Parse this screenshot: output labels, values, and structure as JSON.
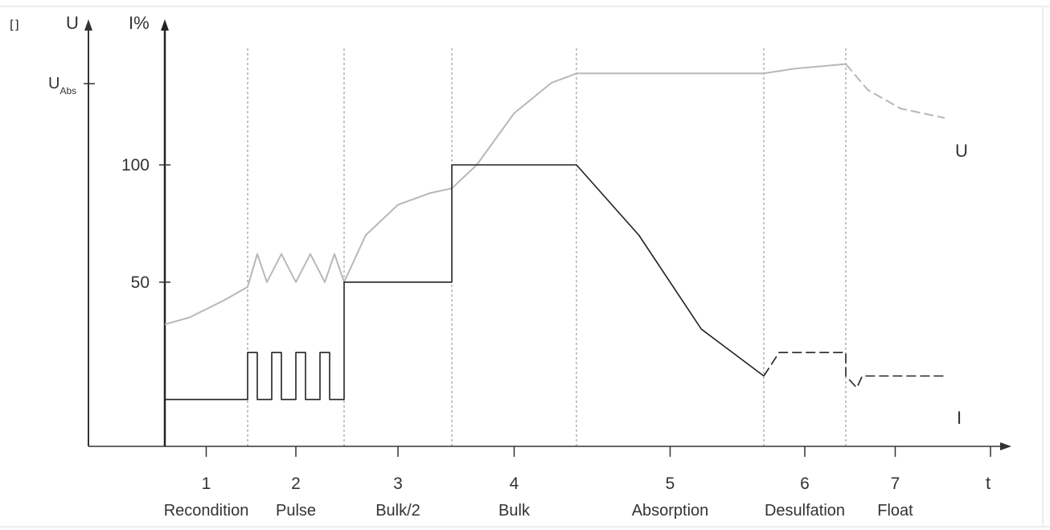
{
  "chart_data": {
    "type": "line",
    "title": "",
    "axes": {
      "u_axis_label": "U",
      "i_axis_label": "I%",
      "x_axis_label": "t",
      "u_abs_label": "U",
      "u_abs_subscript": "Abs",
      "y_ticks": [
        {
          "label": "100",
          "value": 100
        },
        {
          "label": "50",
          "value": 50
        }
      ],
      "ylim": [
        -20,
        160
      ]
    },
    "phases": [
      {
        "number": "1",
        "name": "Recondition"
      },
      {
        "number": "2",
        "name": "Pulse"
      },
      {
        "number": "3",
        "name": "Bulk/2"
      },
      {
        "number": "4",
        "name": "Bulk"
      },
      {
        "number": "5",
        "name": "Absorption"
      },
      {
        "number": "6",
        "name": "Desulfation"
      },
      {
        "number": "7",
        "name": "Float"
      }
    ],
    "phase_boundaries": [
      0,
      1,
      2,
      3,
      4,
      5.5,
      6.3,
      7.2
    ],
    "series": [
      {
        "name": "U",
        "color": "#b8b8b8",
        "points": [
          [
            0,
            32
          ],
          [
            0.3,
            35
          ],
          [
            0.7,
            42
          ],
          [
            1,
            48
          ],
          [
            1.1,
            62
          ],
          [
            1.2,
            50
          ],
          [
            1.35,
            62
          ],
          [
            1.5,
            50
          ],
          [
            1.65,
            62
          ],
          [
            1.8,
            50
          ],
          [
            1.9,
            62
          ],
          [
            2,
            50
          ],
          [
            2.2,
            70
          ],
          [
            2.5,
            83
          ],
          [
            2.8,
            88
          ],
          [
            3,
            90
          ],
          [
            3.2,
            100
          ],
          [
            3.5,
            122
          ],
          [
            3.8,
            135
          ],
          [
            4,
            139
          ],
          [
            5.5,
            139
          ],
          [
            5.8,
            141
          ],
          [
            6.3,
            143
          ],
          [
            6.5,
            132
          ],
          [
            6.8,
            124
          ],
          [
            7.2,
            120
          ]
        ],
        "dashed_from_x": 6.3
      },
      {
        "name": "I",
        "color": "#222222",
        "points": [
          [
            0,
            0
          ],
          [
            1,
            0
          ],
          [
            1,
            20
          ],
          [
            1.1,
            20
          ],
          [
            1.1,
            0
          ],
          [
            1.25,
            0
          ],
          [
            1.25,
            20
          ],
          [
            1.35,
            20
          ],
          [
            1.35,
            0
          ],
          [
            1.5,
            0
          ],
          [
            1.5,
            20
          ],
          [
            1.6,
            20
          ],
          [
            1.6,
            0
          ],
          [
            1.75,
            0
          ],
          [
            1.75,
            20
          ],
          [
            1.85,
            20
          ],
          [
            1.85,
            0
          ],
          [
            2,
            0
          ],
          [
            2,
            50
          ],
          [
            3,
            50
          ],
          [
            3,
            100
          ],
          [
            4,
            100
          ],
          [
            4.5,
            70
          ],
          [
            5,
            30
          ],
          [
            5.5,
            10
          ],
          [
            5.65,
            20
          ],
          [
            6.3,
            20
          ],
          [
            6.3,
            10
          ],
          [
            6.4,
            5
          ],
          [
            6.45,
            10
          ],
          [
            7.2,
            10
          ]
        ],
        "dashed_from_x": 5.5
      }
    ],
    "series_labels": [
      {
        "text": "U"
      },
      {
        "text": "I"
      }
    ],
    "grid": false,
    "phase_dividers": "dashed vertical"
  }
}
